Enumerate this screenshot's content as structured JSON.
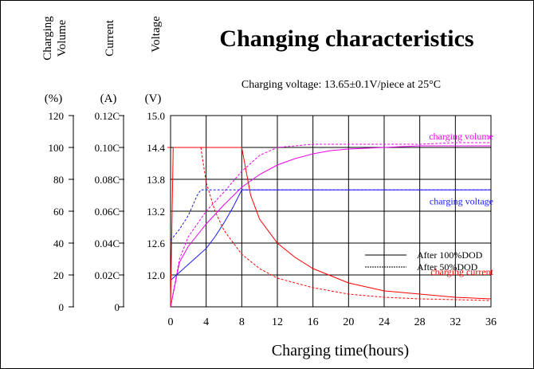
{
  "chart_data": {
    "type": "line",
    "title": "Changing characteristics",
    "subtitle": "Charging voltage:  13.65±0.1V/piece  at 25°C",
    "xlabel": "Charging time(hours)",
    "x_ticks": [
      "0",
      "4",
      "8",
      "12",
      "16",
      "20",
      "24",
      "28",
      "32",
      "36"
    ],
    "xlim": [
      0,
      36
    ],
    "grid": true,
    "axes": [
      {
        "key": "volume",
        "title": [
          "Charging",
          "Volume"
        ],
        "unit": "(%)",
        "ticks": [
          "0",
          "20",
          "40",
          "60",
          "80",
          "100",
          "120"
        ],
        "range": [
          0,
          120
        ]
      },
      {
        "key": "current",
        "title": [
          "Current"
        ],
        "unit": "(A)",
        "ticks": [
          "0",
          "0.02C",
          "0.04C",
          "0.06C",
          "0.08C",
          "0.10C",
          "0.12C"
        ],
        "range": [
          0,
          0.12
        ]
      },
      {
        "key": "voltage",
        "title": [
          "Voltage"
        ],
        "unit": "(V)",
        "ticks": [
          "12.0",
          "12.6",
          "13.2",
          "13.8",
          "14.4",
          "15.0"
        ],
        "range": [
          11.4,
          15.0
        ]
      }
    ],
    "legend": {
      "position": "bottom-right",
      "entries": [
        {
          "label": "After 100%DOD",
          "style": "solid"
        },
        {
          "label": "After 50%DOD",
          "style": "dashed"
        }
      ]
    },
    "series": [
      {
        "name": "charging volume",
        "axis": "volume",
        "color": "#ee00ee",
        "label": "charging volume",
        "label_at": {
          "x": 30,
          "y": 104
        },
        "lines": {
          "solid": {
            "x": [
              0,
              1,
              2,
              4,
              6,
              8,
              10,
              12,
              14,
              16,
              18,
              20,
              24,
              28,
              32,
              36
            ],
            "y": [
              0,
              28,
              38,
              52,
              64,
              75,
              83,
              89,
              93,
              96,
              98,
              99,
              100,
              101,
              101,
              101
            ]
          },
          "dashed": {
            "x": [
              0,
              1,
              2,
              3,
              4,
              6,
              8,
              10,
              12,
              14,
              16,
              20,
              24,
              28,
              32,
              36
            ],
            "y": [
              0,
              30,
              44,
              52,
              60,
              72,
              85,
              95,
              100,
              101,
              102,
              102,
              102,
              102,
              103,
              103
            ]
          }
        }
      },
      {
        "name": "charging voltage",
        "axis": "voltage",
        "color": "#1a1aff",
        "label": "charging voltage",
        "label_at": {
          "x": 30,
          "y": 13.3
        },
        "lines": {
          "solid": {
            "x": [
              0,
              1,
              2,
              3,
              4,
              5,
              6,
              7,
              8,
              36
            ],
            "y": [
              11.9,
              12.05,
              12.2,
              12.35,
              12.5,
              12.72,
              12.98,
              13.27,
              13.6,
              13.6
            ]
          },
          "dashed": {
            "x": [
              0,
              1,
              2,
              3,
              3.4,
              36
            ],
            "y": [
              12.65,
              12.86,
              13.12,
              13.5,
              13.6,
              13.6
            ]
          }
        }
      },
      {
        "name": "charging current",
        "axis": "current",
        "color": "#ff0000",
        "label": "charging current",
        "label_at": {
          "x": 30,
          "y": 0.019
        },
        "lines": {
          "solid": {
            "x": [
              0,
              0.3,
              8,
              9,
              10,
              12,
              14,
              16,
              20,
              24,
              28,
              32,
              36
            ],
            "y": [
              0,
              0.1,
              0.1,
              0.07,
              0.055,
              0.04,
              0.031,
              0.024,
              0.015,
              0.01,
              0.008,
              0.006,
              0.005
            ]
          },
          "dashed": {
            "x": [
              3.4,
              4,
              5,
              6,
              8,
              10,
              12,
              16,
              20,
              24,
              28,
              36
            ],
            "y": [
              0.1,
              0.078,
              0.06,
              0.048,
              0.033,
              0.024,
              0.018,
              0.012,
              0.008,
              0.006,
              0.005,
              0.004
            ]
          }
        }
      }
    ]
  }
}
